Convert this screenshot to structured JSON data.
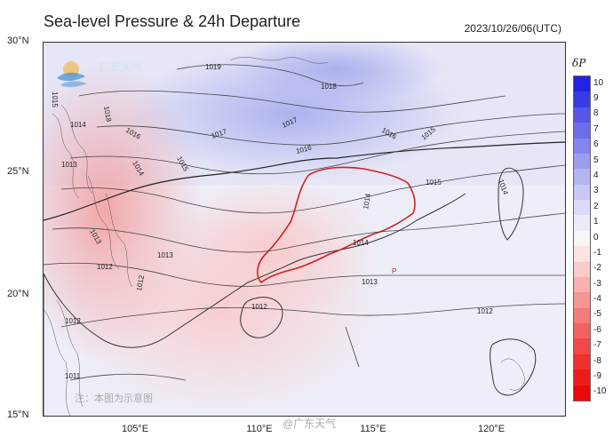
{
  "title": "Sea-level Pressure & 24h Departure",
  "timestamp": "2023/10/26/06(UTC)",
  "colorbar": {
    "title": "δP",
    "ticks": [
      "10",
      "9",
      "8",
      "7",
      "6",
      "5",
      "4",
      "3",
      "2",
      "1",
      "0",
      "-1",
      "-2",
      "-3",
      "-4",
      "-5",
      "-6",
      "-7",
      "-8",
      "-9",
      "-10"
    ],
    "colors": [
      "#2222e0",
      "#3a3ae4",
      "#5656e8",
      "#6d6de9",
      "#8585ec",
      "#9d9def",
      "#b4b4f2",
      "#c8c8f6",
      "#dadaf9",
      "#ebebfb",
      "#f7f7f7",
      "#fde4e4",
      "#fbcaca",
      "#f9b0b0",
      "#f69696",
      "#f47c7c",
      "#f26262",
      "#f04848",
      "#ee3030",
      "#ec1c1c",
      "#ea0808"
    ]
  },
  "lat_labels": [
    "30°N",
    "25°N",
    "20°N",
    "15°N"
  ],
  "lon_labels": [
    "105°E",
    "110°E",
    "115°E",
    "120°E"
  ],
  "contour_labels": [
    "1019",
    "1018",
    "1018",
    "1017",
    "1017",
    "1016",
    "1016",
    "1016",
    "1015",
    "1015",
    "1015",
    "1014",
    "1014",
    "1014",
    "1014",
    "1013",
    "1013",
    "1013",
    "1013",
    "1012",
    "1012",
    "1012",
    "1012",
    "1012",
    "1011",
    "1015",
    "1014"
  ],
  "low_marker": "P",
  "logo_text": "广东天气",
  "note": "注：本图为示意图",
  "watermark": "@广东天气",
  "map_extent": {
    "lon": [
      101,
      122
    ],
    "lat": [
      15,
      30
    ]
  }
}
